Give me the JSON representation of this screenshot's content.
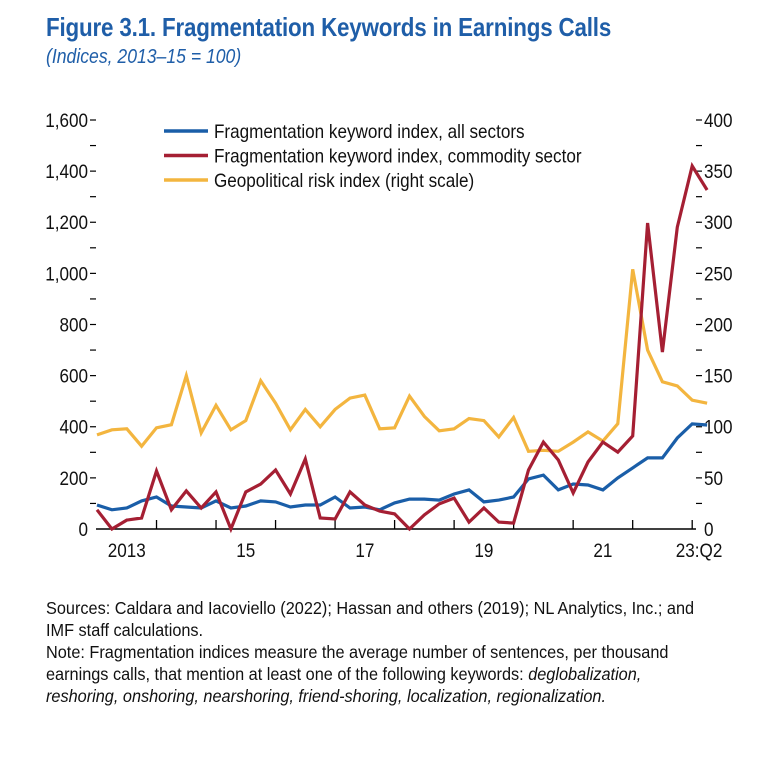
{
  "figure": {
    "title": "Figure 3.1.  Fragmentation Keywords in Earnings Calls",
    "subtitle": "(Indices, 2013–15 = 100)"
  },
  "notes": {
    "sources": "Sources: Caldara and Iacoviello (2022); Hassan and others (2019); NL Analytics, Inc.; and IMF staff calculations.",
    "note": "Note: Fragmentation indices measure the average number of sentences, per thousand earnings calls, that mention at least one of the following keywords:",
    "keywords": "deglobalization, reshoring, onshoring, nearshoring, friend-shoring, localization, regionalization."
  },
  "chart_data": {
    "type": "line",
    "title": "Figure 3.1.  Fragmentation Keywords in Earnings Calls",
    "subtitle": "(Indices, 2013–15 = 100)",
    "xlabel": "",
    "ylabel": "",
    "frequency": "quarterly",
    "x_start": "2013:Q1",
    "x_end": "2023:Q2",
    "x_tick_labels": [
      {
        "label": "2013",
        "year": 2013
      },
      {
        "label": "15",
        "year": 2015
      },
      {
        "label": "17",
        "year": 2017
      },
      {
        "label": "19",
        "year": 2019
      },
      {
        "label": "21",
        "year": 2021
      },
      {
        "label": "23:Q2",
        "year": 2023.25
      }
    ],
    "ylim_left": [
      0,
      1600
    ],
    "y_ticks_left": [
      "0",
      "200",
      "400",
      "600",
      "800",
      "1,000",
      "1,200",
      "1,400",
      "1,600"
    ],
    "ylim_right": [
      0,
      400
    ],
    "y_ticks_right": [
      "0",
      "50",
      "100",
      "150",
      "200",
      "250",
      "300",
      "350",
      "400"
    ],
    "grid": false,
    "legend_position": "top-center",
    "series": [
      {
        "name": "Fragmentation keyword index, all sectors",
        "axis": "left",
        "color": "#1a5ea8",
        "values": [
          94,
          75,
          82,
          110,
          125,
          90,
          86,
          82,
          110,
          82,
          90,
          110,
          106,
          86,
          94,
          94,
          125,
          82,
          86,
          75,
          102,
          117,
          117,
          113,
          137,
          153,
          106,
          113,
          125,
          196,
          211,
          153,
          176,
          172,
          153,
          200,
          239,
          278,
          278,
          356,
          411,
          407
        ]
      },
      {
        "name": "Fragmentation keyword index, commodity sector",
        "axis": "left",
        "color": "#a51f33",
        "values": [
          75,
          0,
          35,
          43,
          227,
          75,
          149,
          82,
          145,
          0,
          145,
          176,
          231,
          137,
          274,
          43,
          39,
          145,
          94,
          70,
          59,
          0,
          55,
          98,
          121,
          27,
          82,
          27,
          23,
          231,
          340,
          270,
          141,
          262,
          340,
          301,
          364,
          1197,
          692,
          1181,
          1420,
          1326
        ]
      },
      {
        "name": "Geopolitical risk index (right scale)",
        "axis": "right",
        "color": "#f3b53f",
        "values": [
          92,
          97,
          98,
          81,
          99,
          102,
          150,
          94,
          121,
          97,
          106,
          145,
          123,
          97,
          117,
          100,
          117,
          128,
          131,
          98,
          99,
          130,
          110,
          96,
          98,
          108,
          106,
          90,
          109,
          76,
          77,
          76,
          85,
          95,
          86,
          103,
          254,
          175,
          144,
          140,
          126,
          123
        ]
      }
    ]
  }
}
